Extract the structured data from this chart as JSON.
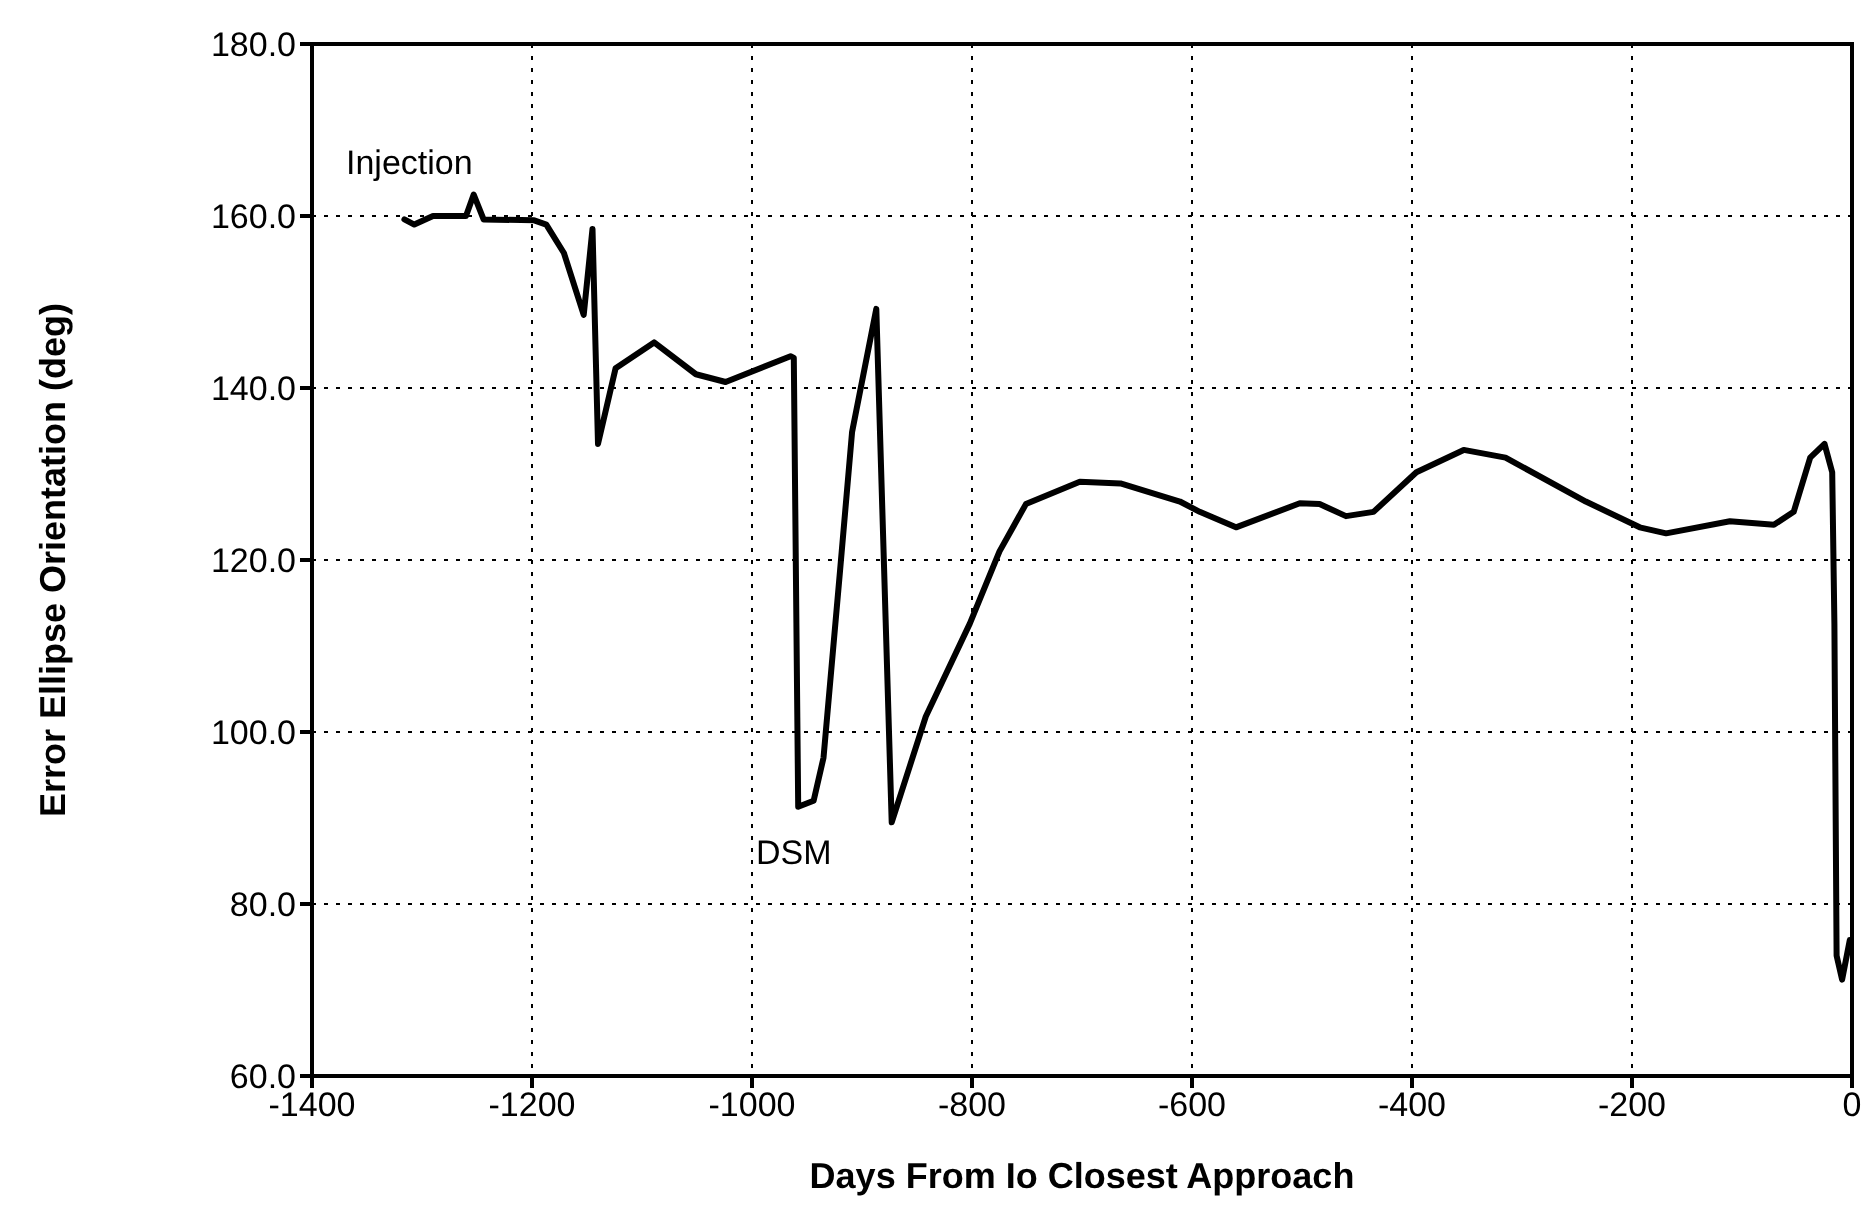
{
  "chart_data": {
    "type": "line",
    "xlabel": "Days From Io Closest Approach",
    "ylabel": "Error Ellipse Orientation (deg)",
    "xlim": [
      -1400,
      0
    ],
    "xticks": [
      -1400,
      -1200,
      -1000,
      -800,
      -600,
      -400,
      -200,
      0
    ],
    "ylim": [
      60,
      180
    ],
    "yticks": [
      {
        "value": 60,
        "label": "60.0"
      },
      {
        "value": 80,
        "label": "80.0"
      },
      {
        "value": 100,
        "label": "100.0"
      },
      {
        "value": 120,
        "label": "120.0"
      },
      {
        "value": 140,
        "label": "140.0"
      },
      {
        "value": 160,
        "label": "160.0"
      },
      {
        "value": 180,
        "label": "180.0"
      }
    ],
    "grid": true,
    "marker": "none",
    "line_style": "solid",
    "annotations": [
      "Injection",
      "DSM"
    ],
    "series": [
      {
        "color": "#000000",
        "x": [
          -1316,
          -1307,
          -1290,
          -1260,
          -1253,
          -1244,
          -1198,
          -1187,
          -1171,
          -1153,
          -1145,
          -1140,
          -1124,
          -1089,
          -1051,
          -1024,
          -965,
          -962,
          -958,
          -944,
          -935,
          -920,
          -909,
          -887,
          -873,
          -842,
          -802,
          -775,
          -751,
          -702,
          -665,
          -611,
          -593,
          -560,
          -502,
          -484,
          -460,
          -435,
          -396,
          -353,
          -315,
          -242,
          -193,
          -169,
          -111,
          -71,
          -53,
          -38,
          -25,
          -18,
          -16,
          -14,
          -9,
          -2
        ],
        "values": [
          159.6,
          159,
          160,
          160,
          162.5,
          159.6,
          159.5,
          159,
          155.7,
          148.5,
          158.5,
          133.5,
          142.3,
          145.3,
          141.6,
          140.7,
          143.7,
          143.5,
          91.3,
          92,
          97,
          118.7,
          134.9,
          149.2,
          89.5,
          101.8,
          112.6,
          121,
          126.5,
          129.1,
          128.9,
          126.8,
          125.6,
          123.8,
          126.6,
          126.5,
          125.1,
          125.6,
          130.2,
          132.8,
          131.9,
          126.8,
          123.8,
          123.1,
          124.5,
          124.1,
          125.6,
          131.9,
          133.5,
          130.2,
          112.6,
          74,
          71.2,
          75.8
        ]
      }
    ]
  }
}
